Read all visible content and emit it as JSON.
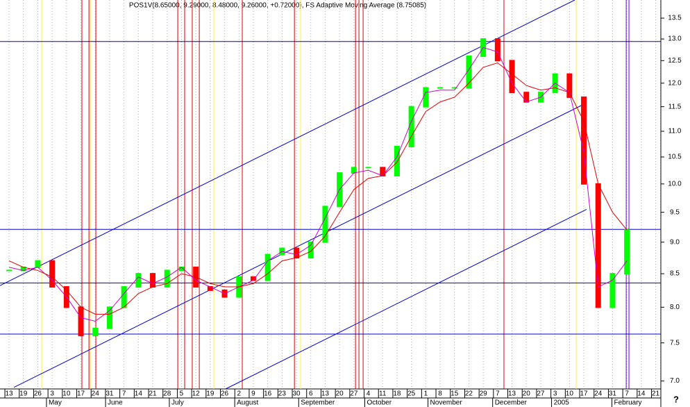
{
  "chart_data": {
    "type": "line",
    "log_y": true,
    "grid": true,
    "title": "POS1V(8.65000, 9.29000, 8.48000, 9.26000, +0.72000), FS Adaptive Moving Average (8.75085)",
    "help_mark": "?",
    "x": [
      0,
      1,
      2,
      3,
      4,
      5,
      6,
      7,
      8,
      9,
      10,
      11,
      12,
      13,
      14,
      15,
      16,
      17,
      18,
      19,
      20,
      21,
      22,
      23,
      24,
      25,
      26,
      27,
      28,
      29,
      30,
      31,
      32,
      33,
      34,
      35,
      36,
      37,
      38,
      39,
      40,
      41,
      42,
      43
    ],
    "series": [
      {
        "name": "POS1V",
        "color": "#00ff00",
        "down_color": "#ff0000",
        "values": [
          8.55,
          8.6,
          8.7,
          8.3,
          8.0,
          7.6,
          7.7,
          8.0,
          8.3,
          8.5,
          8.3,
          8.55,
          8.6,
          8.3,
          8.25,
          8.15,
          8.45,
          8.4,
          8.8,
          8.9,
          8.75,
          9.0,
          9.6,
          10.2,
          10.3,
          10.3,
          10.15,
          10.7,
          11.5,
          11.9,
          11.9,
          11.9,
          12.6,
          13.0,
          12.5,
          11.8,
          11.6,
          11.8,
          12.2,
          11.7,
          10.0,
          8.0,
          8.5,
          9.2
        ]
      },
      {
        "name": "FS Adaptive Moving Average",
        "color": "#cc00cc",
        "values": [
          8.6,
          8.55,
          8.6,
          8.4,
          8.15,
          7.85,
          7.8,
          7.95,
          8.2,
          8.45,
          8.35,
          8.45,
          8.6,
          8.4,
          8.3,
          8.2,
          8.3,
          8.4,
          8.7,
          8.85,
          8.8,
          8.95,
          9.4,
          9.9,
          10.2,
          10.25,
          10.15,
          10.5,
          11.2,
          11.8,
          11.85,
          11.85,
          12.3,
          12.8,
          12.7,
          12.0,
          11.6,
          11.7,
          12.0,
          11.8,
          10.6,
          8.3,
          8.4,
          8.7
        ]
      },
      {
        "name": "Moving Average",
        "color": "#dd0000",
        "values": [
          8.7,
          8.6,
          8.55,
          8.45,
          8.25,
          8.0,
          7.9,
          7.9,
          8.0,
          8.2,
          8.3,
          8.35,
          8.5,
          8.45,
          8.35,
          8.3,
          8.3,
          8.35,
          8.5,
          8.7,
          8.75,
          8.85,
          9.1,
          9.5,
          9.9,
          10.1,
          10.15,
          10.4,
          10.9,
          11.4,
          11.6,
          11.7,
          12.0,
          12.35,
          12.45,
          12.2,
          11.95,
          11.85,
          11.9,
          11.8,
          11.2,
          10.0,
          9.5,
          9.2
        ]
      }
    ],
    "xlim": [
      -0.63,
      45.36
    ],
    "ylim": [
      6.9,
      13.95
    ],
    "yticks": [
      {
        "value": 7,
        "label": "7.0"
      },
      {
        "value": 7.5,
        "label": "7.5"
      },
      {
        "value": 8,
        "label": "8.0"
      },
      {
        "value": 8.5,
        "label": "8.5"
      },
      {
        "value": 9,
        "label": "9.0"
      },
      {
        "value": 9.5,
        "label": "9.5"
      },
      {
        "value": 10,
        "label": "10.0"
      },
      {
        "value": 10.5,
        "label": "10.5"
      },
      {
        "value": 11,
        "label": "11.0"
      },
      {
        "value": 11.5,
        "label": "11.5"
      },
      {
        "value": 12,
        "label": "12.0"
      },
      {
        "value": 12.5,
        "label": "12.5"
      },
      {
        "value": 13,
        "label": "13.0"
      },
      {
        "value": 13.5,
        "label": "13.5"
      }
    ],
    "xticks": [
      {
        "value": 0,
        "label": "13"
      },
      {
        "value": 1,
        "label": "19"
      },
      {
        "value": 2,
        "label": "26"
      },
      {
        "value": 3,
        "label": "3"
      },
      {
        "value": 4,
        "label": "10"
      },
      {
        "value": 5,
        "label": "17"
      },
      {
        "value": 6,
        "label": "24"
      },
      {
        "value": 7,
        "label": "31"
      },
      {
        "value": 8,
        "label": "7"
      },
      {
        "value": 9,
        "label": "14"
      },
      {
        "value": 10,
        "label": "21"
      },
      {
        "value": 11,
        "label": "28"
      },
      {
        "value": 12,
        "label": "5"
      },
      {
        "value": 13,
        "label": "12"
      },
      {
        "value": 14,
        "label": "19"
      },
      {
        "value": 15,
        "label": "26"
      },
      {
        "value": 16,
        "label": "2"
      },
      {
        "value": 17,
        "label": "9"
      },
      {
        "value": 18,
        "label": "16"
      },
      {
        "value": 19,
        "label": "23"
      },
      {
        "value": 20,
        "label": "30"
      },
      {
        "value": 21,
        "label": "6"
      },
      {
        "value": 22,
        "label": "13"
      },
      {
        "value": 23,
        "label": "20"
      },
      {
        "value": 24,
        "label": "27"
      },
      {
        "value": 25,
        "label": "4"
      },
      {
        "value": 26,
        "label": "11"
      },
      {
        "value": 27,
        "label": "18"
      },
      {
        "value": 28,
        "label": "25"
      },
      {
        "value": 29,
        "label": "1"
      },
      {
        "value": 30,
        "label": "8"
      },
      {
        "value": 31,
        "label": "15"
      },
      {
        "value": 32,
        "label": "22"
      },
      {
        "value": 33,
        "label": "29"
      },
      {
        "value": 34,
        "label": "7"
      },
      {
        "value": 35,
        "label": "13"
      },
      {
        "value": 36,
        "label": "20"
      },
      {
        "value": 37,
        "label": "27"
      },
      {
        "value": 38,
        "label": "3"
      },
      {
        "value": 39,
        "label": "10"
      },
      {
        "value": 40,
        "label": "17"
      },
      {
        "value": 41,
        "label": "24"
      },
      {
        "value": 42,
        "label": "31"
      },
      {
        "value": 43,
        "label": "7"
      },
      {
        "value": 44,
        "label": "14"
      },
      {
        "value": 45,
        "label": "21"
      }
    ],
    "month_ticks": [
      {
        "value": 2.75,
        "label": "May"
      },
      {
        "value": 6.86,
        "label": "June"
      },
      {
        "value": 11.3,
        "label": "July"
      },
      {
        "value": 15.85,
        "label": "August"
      },
      {
        "value": 20.3,
        "label": "September"
      },
      {
        "value": 24.9,
        "label": "October"
      },
      {
        "value": 29.3,
        "label": "November"
      },
      {
        "value": 33.8,
        "label": "December"
      },
      {
        "value": 37.9,
        "label": "2005"
      },
      {
        "value": 42.1,
        "label": "February"
      }
    ],
    "horizontal_lines": {
      "color": "#0000cc",
      "values": [
        12.94,
        9.21,
        8.36,
        7.62
      ]
    },
    "trend_lines": {
      "color": "#0000cc",
      "lines": [
        [
          -0.63,
          8.32,
          39.37,
          13.95
        ],
        [
          0.34,
          6.92,
          40.19,
          11.58
        ],
        [
          15.07,
          6.9,
          40.19,
          9.55
        ]
      ]
    },
    "marker_lines": [
      {
        "color": "#dd0000",
        "x": [
          5.07,
          5.56,
          6.04,
          11.74,
          12.22,
          12.75,
          13.24,
          16.23,
          19.86,
          24.11,
          24.35,
          24.64,
          34.44
        ]
      },
      {
        "color": "#ffee44",
        "x": [
          2.27,
          5.65,
          14.25,
          20.29,
          39.47
        ]
      },
      {
        "color": "#6600cc",
        "x": [
          42.95,
          43.14
        ]
      }
    ]
  }
}
